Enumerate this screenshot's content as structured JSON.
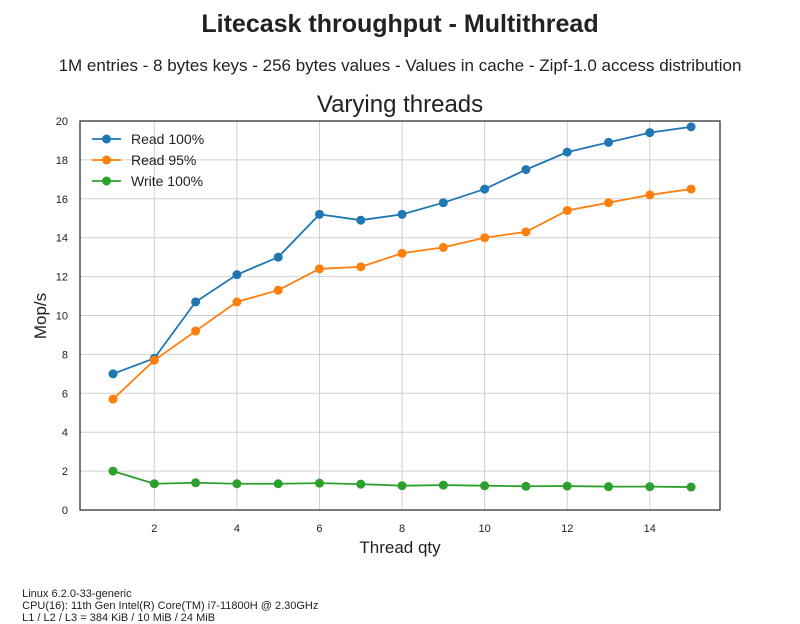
{
  "header": {
    "title": "Litecask throughput - Multithread",
    "subtitle": "1M entries - 8 bytes keys - 256 bytes values - Values in cache - Zipf-1.0 access distribution"
  },
  "chart_data": {
    "type": "line",
    "title": "Varying threads",
    "xlabel": "Thread qty",
    "ylabel": "Mop/s",
    "xlim": [
      0.2,
      15.7
    ],
    "ylim": [
      0,
      20
    ],
    "xticks": [
      2,
      4,
      6,
      8,
      10,
      12,
      14
    ],
    "yticks": [
      0,
      2,
      4,
      6,
      8,
      10,
      12,
      14,
      16,
      18,
      20
    ],
    "grid": true,
    "legend_position": "top-left",
    "x": [
      1,
      2,
      3,
      4,
      5,
      6,
      7,
      8,
      9,
      10,
      11,
      12,
      13,
      14,
      15
    ],
    "series": [
      {
        "name": "Read 100%",
        "color": "#1f77b4",
        "values": [
          7.0,
          7.8,
          10.7,
          12.1,
          13.0,
          15.2,
          14.9,
          15.2,
          15.8,
          16.5,
          17.5,
          18.4,
          18.9,
          19.4,
          19.7
        ]
      },
      {
        "name": "Read 95%",
        "color": "#ff7f0e",
        "values": [
          5.7,
          7.7,
          9.2,
          10.7,
          11.3,
          12.4,
          12.5,
          13.2,
          13.5,
          14.0,
          14.3,
          15.4,
          15.8,
          16.2,
          16.5
        ]
      },
      {
        "name": "Write 100%",
        "color": "#2ca02c",
        "values": [
          2.0,
          1.35,
          1.4,
          1.35,
          1.35,
          1.38,
          1.33,
          1.25,
          1.28,
          1.25,
          1.22,
          1.23,
          1.2,
          1.2,
          1.18
        ]
      }
    ]
  },
  "footer": {
    "os": "Linux 6.2.0-33-generic",
    "cpu": "CPU(16): 11th Gen Intel(R) Core(TM) i7-11800H @ 2.30GHz",
    "cache": "L1 / L2 / L3 = 384 KiB / 10 MiB / 24 MiB"
  }
}
